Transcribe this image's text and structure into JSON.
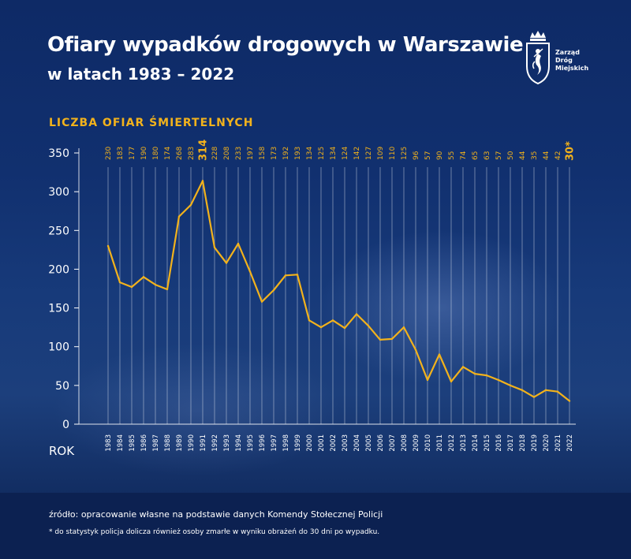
{
  "header": {
    "title": "Ofiary wypadków drogowych w Warszawie",
    "subtitle": "w latach 1983 – 2022"
  },
  "logo": {
    "line1": "Zarząd",
    "line2": "Dróg",
    "line3": "Miejskich"
  },
  "footer": {
    "source": "źródło: opracowanie własne na podstawie danych Komendy Stołecznej Policji",
    "note": "* do statystyk policja dolicza również osoby zmarłe w wyniku obrażeń do 30 dni po wypadku."
  },
  "colors": {
    "accent": "#f2b21c",
    "background": "#0d2356",
    "text": "#ffffff"
  },
  "chart_data": {
    "type": "line",
    "title": "Ofiary wypadków drogowych w Warszawie",
    "subtitle": "w latach 1983 – 2022",
    "series_label": "LICZBA OFIAR ŚMIERTELNYCH",
    "xlabel": "ROK",
    "ylabel": "",
    "ylim": [
      0,
      350
    ],
    "yticks": [
      0,
      50,
      100,
      150,
      200,
      250,
      300,
      350
    ],
    "grid": true,
    "legend": "none",
    "categories": [
      "1983",
      "1984",
      "1985",
      "1986",
      "1987",
      "1988",
      "1989",
      "1990",
      "1991",
      "1992",
      "1993",
      "1994",
      "1995",
      "1996",
      "1997",
      "1998",
      "1999",
      "2000",
      "2001",
      "2002",
      "2003",
      "2004",
      "2005",
      "2006",
      "2007",
      "2008",
      "2009",
      "2010",
      "2011",
      "2012",
      "2013",
      "2014",
      "2015",
      "2016",
      "2017",
      "2018",
      "2019",
      "2020",
      "2021",
      "2022"
    ],
    "values": [
      230,
      183,
      177,
      190,
      180,
      174,
      268,
      283,
      314,
      228,
      208,
      233,
      197,
      158,
      173,
      192,
      193,
      134,
      125,
      134,
      124,
      142,
      127,
      109,
      110,
      125,
      96,
      57,
      90,
      55,
      74,
      65,
      63,
      57,
      50,
      44,
      35,
      44,
      42,
      30
    ],
    "value_labels": [
      "230",
      "183",
      "177",
      "190",
      "180",
      "174",
      "268",
      "283",
      "314",
      "228",
      "208",
      "233",
      "197",
      "158",
      "173",
      "192",
      "193",
      "134",
      "125",
      "134",
      "124",
      "142",
      "127",
      "109",
      "110",
      "125",
      "96",
      "57",
      "90",
      "55",
      "74",
      "65",
      "63",
      "57",
      "50",
      "44",
      "35",
      "44",
      "42",
      "30*"
    ],
    "highlighted": [
      "1991",
      "2022"
    ]
  }
}
